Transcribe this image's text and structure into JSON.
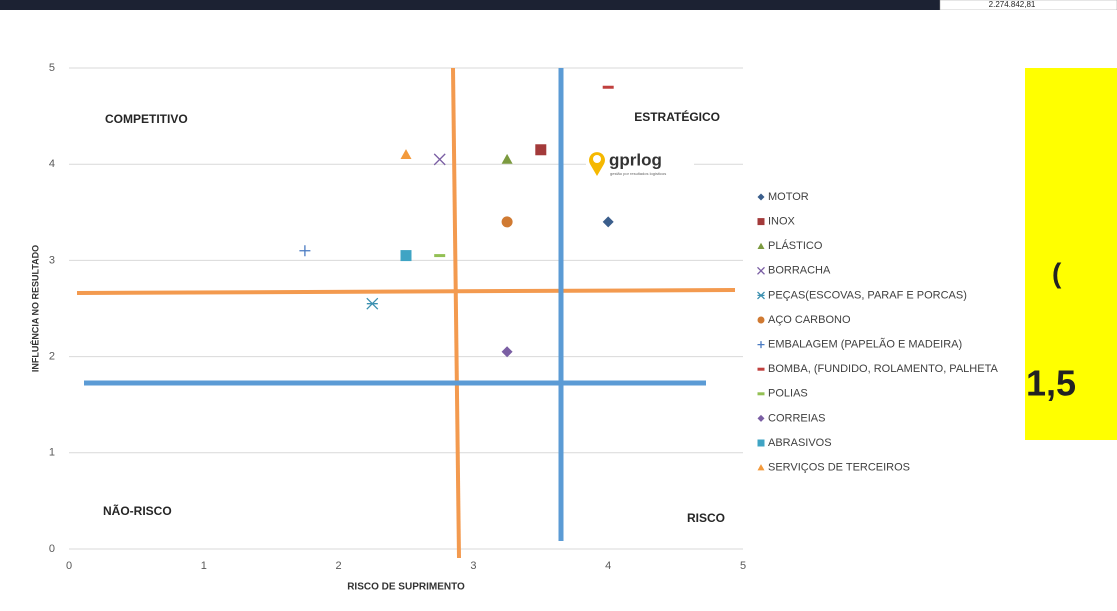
{
  "top_value": "2.274.842,81",
  "chart_data": {
    "type": "scatter",
    "x_label": "RISCO DE SUPRIMENTO",
    "y_label": "INFLUÊNCIA NO RESULTADO",
    "xlim": [
      0,
      5
    ],
    "ylim": [
      0,
      5
    ],
    "xticks": [
      0,
      1,
      2,
      3,
      4,
      5
    ],
    "yticks": [
      0,
      1,
      2,
      3,
      4,
      5
    ],
    "grid": true,
    "series": [
      {
        "name": "MOTOR",
        "color": "#3b5e8c",
        "marker": "diamond",
        "x": [
          4.0
        ],
        "values": [
          3.4
        ]
      },
      {
        "name": "INOX",
        "color": "#a33a3a",
        "marker": "square",
        "x": [
          3.5
        ],
        "values": [
          4.15
        ]
      },
      {
        "name": "PLÁSTICO",
        "color": "#7b9a3f",
        "marker": "triangle",
        "x": [
          3.25
        ],
        "values": [
          4.05
        ]
      },
      {
        "name": "BORRACHA",
        "color": "#7a5ea3",
        "marker": "x",
        "x": [
          2.75
        ],
        "values": [
          4.05
        ]
      },
      {
        "name": "PEÇAS(ESCOVAS, PARAF E PORCAS)",
        "color": "#3c90b0",
        "marker": "asterisk",
        "x": [
          2.25
        ],
        "values": [
          2.55
        ]
      },
      {
        "name": "AÇO CARBONO",
        "color": "#d07a32",
        "marker": "circle",
        "x": [
          3.25
        ],
        "values": [
          3.4
        ]
      },
      {
        "name": "EMBALAGEM (PAPELÃO E MADEIRA)",
        "color": "#4a7bc2",
        "marker": "plus",
        "x": [
          1.75
        ],
        "values": [
          3.1
        ]
      },
      {
        "name": "BOMBA, (FUNDIDO, ROLAMENTO, PALHETA",
        "color": "#c0403e",
        "marker": "dash",
        "x": [
          4.0
        ],
        "values": [
          4.8
        ]
      },
      {
        "name": "POLIAS",
        "color": "#93c054",
        "marker": "dash",
        "x": [
          2.75
        ],
        "values": [
          3.05
        ]
      },
      {
        "name": "CORREIAS",
        "color": "#7a5ea3",
        "marker": "diamond",
        "x": [
          3.25
        ],
        "values": [
          2.05
        ]
      },
      {
        "name": "ABRASIVOS",
        "color": "#3fa4c4",
        "marker": "square",
        "x": [
          2.5
        ],
        "values": [
          3.05
        ]
      },
      {
        "name": "SERVIÇOS DE TERCEIROS",
        "color": "#f39a3c",
        "marker": "triangle",
        "x": [
          2.5
        ],
        "values": [
          4.1
        ]
      }
    ],
    "quadrant_labels": [
      "COMPETITIVO",
      "ESTRATÉGICO",
      "NÃO-RISCO",
      "RISCO"
    ]
  },
  "logo": {
    "name": "gprlog",
    "tagline": "gestão por resultados logísticos"
  },
  "side_panel": {
    "line1": "(",
    "line2": "1,5"
  }
}
